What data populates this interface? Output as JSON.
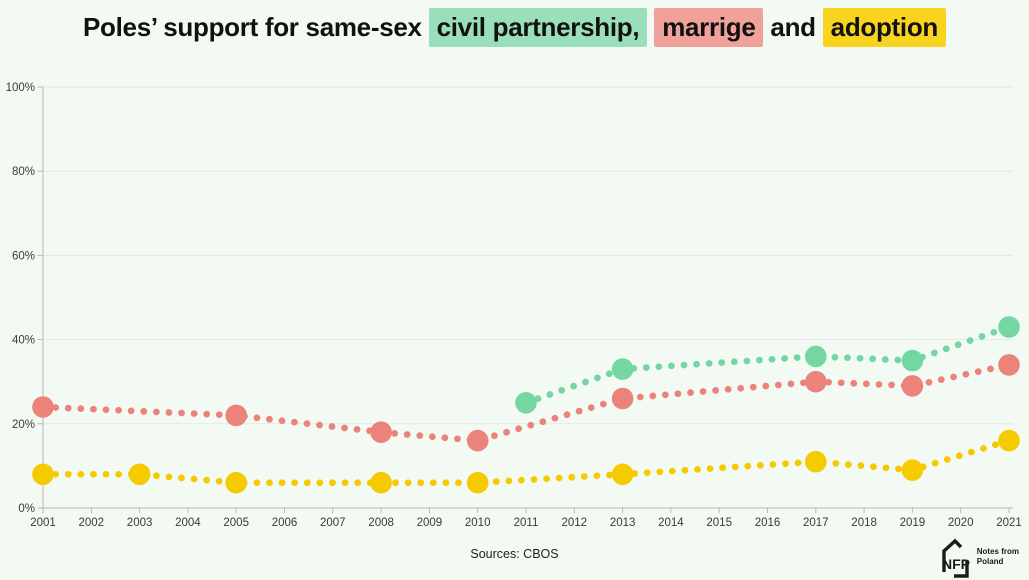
{
  "title": {
    "segments": [
      {
        "text": "Poles’ support for same-sex "
      },
      {
        "text": "civil partnership,",
        "highlight": "civil_partnership"
      },
      {
        "text": " "
      },
      {
        "text": "marrige",
        "highlight": "marriage"
      },
      {
        "text": " and "
      },
      {
        "text": "adoption",
        "highlight": "adoption"
      }
    ]
  },
  "colors": {
    "background": "#f3faf3",
    "title_text": "#111111",
    "highlight_civil_partnership": "#9adfbc",
    "highlight_marriage": "#f0a29a",
    "highlight_adoption": "#f8d41f",
    "series_civil_partnership": "#74d7a2",
    "series_marriage": "#ec837b",
    "series_adoption": "#f6ca00",
    "gridline": "#e2e8e1",
    "axis_line": "#b5bbb3",
    "axis_text": "#3a3a3a"
  },
  "chart_data": {
    "type": "line",
    "style": "dotted-line-with-markers",
    "title": "Poles’ support for same-sex civil partnership, marrige and adoption",
    "xlabel": "",
    "ylabel": "",
    "xlim": [
      2001,
      2021
    ],
    "ylim": [
      0,
      100
    ],
    "grid": "horizontal",
    "legend": "highlighted-title-words",
    "x_ticks": [
      2001,
      2002,
      2003,
      2004,
      2005,
      2006,
      2007,
      2008,
      2009,
      2010,
      2011,
      2012,
      2013,
      2014,
      2015,
      2016,
      2017,
      2018,
      2019,
      2020,
      2021
    ],
    "y_ticks": [
      {
        "v": 0,
        "label": "0%"
      },
      {
        "v": 20,
        "label": "20%"
      },
      {
        "v": 40,
        "label": "40%"
      },
      {
        "v": 60,
        "label": "60%"
      },
      {
        "v": 80,
        "label": "80%"
      },
      {
        "v": 100,
        "label": "100%"
      }
    ],
    "series": [
      {
        "id": "civil-partnership",
        "name": "civil partnership",
        "color_key": "series_civil_partnership",
        "points": [
          [
            2011,
            25
          ],
          [
            2013,
            33
          ],
          [
            2017,
            36
          ],
          [
            2019,
            35
          ],
          [
            2021,
            43
          ]
        ]
      },
      {
        "id": "marriage",
        "name": "marrige",
        "color_key": "series_marriage",
        "points": [
          [
            2001,
            24
          ],
          [
            2005,
            22
          ],
          [
            2008,
            18
          ],
          [
            2010,
            16
          ],
          [
            2013,
            26
          ],
          [
            2017,
            30
          ],
          [
            2019,
            29
          ],
          [
            2021,
            34
          ]
        ]
      },
      {
        "id": "adoption",
        "name": "adoption",
        "color_key": "series_adoption",
        "points": [
          [
            2001,
            8
          ],
          [
            2003,
            8
          ],
          [
            2005,
            6
          ],
          [
            2008,
            6
          ],
          [
            2010,
            6
          ],
          [
            2013,
            8
          ],
          [
            2017,
            11
          ],
          [
            2019,
            9
          ],
          [
            2021,
            16
          ]
        ]
      }
    ]
  },
  "footer": {
    "source": "Sources: CBOS"
  },
  "logo": {
    "abbr": "NFP",
    "line1": "Notes from",
    "line2": "Poland"
  }
}
